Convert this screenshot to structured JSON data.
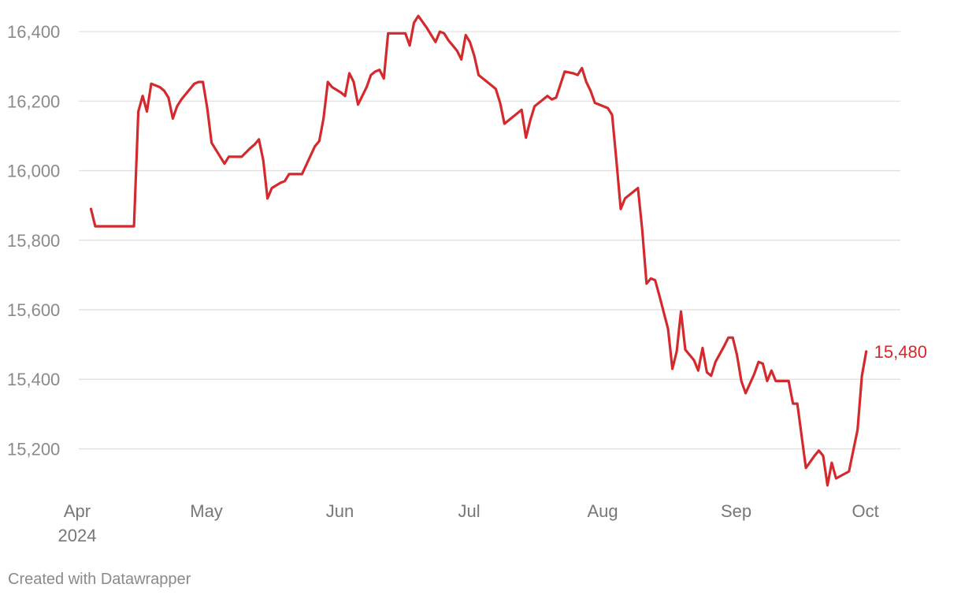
{
  "chart_data": {
    "type": "line",
    "colors": {
      "line": "#d42a2e",
      "grid": "#dedede",
      "tick_text": "#8a8a8a"
    },
    "y_ticks": [
      {
        "value": 15200,
        "label": "15,200"
      },
      {
        "value": 15400,
        "label": "15,400"
      },
      {
        "value": 15600,
        "label": "15,600"
      },
      {
        "value": 15800,
        "label": "15,800"
      },
      {
        "value": 16000,
        "label": "16,000"
      },
      {
        "value": 16200,
        "label": "16,200"
      },
      {
        "value": 16400,
        "label": "16,400"
      }
    ],
    "ylim": [
      15090,
      16450
    ],
    "grid": true,
    "x_ticks": [
      {
        "date": "2024-04-01",
        "label": "Apr",
        "sublabel": "2024"
      },
      {
        "date": "2024-05-01",
        "label": "May",
        "sublabel": ""
      },
      {
        "date": "2024-06-01",
        "label": "Jun",
        "sublabel": ""
      },
      {
        "date": "2024-07-01",
        "label": "Jul",
        "sublabel": ""
      },
      {
        "date": "2024-08-01",
        "label": "Aug",
        "sublabel": ""
      },
      {
        "date": "2024-09-01",
        "label": "Sep",
        "sublabel": ""
      },
      {
        "date": "2024-10-01",
        "label": "Oct",
        "sublabel": ""
      }
    ],
    "xlim": [
      "2024-04-01",
      "2024-10-04"
    ],
    "end_label": "15,480",
    "series": [
      {
        "points": [
          [
            "2024-04-02",
            15890
          ],
          [
            "2024-04-03",
            15840
          ],
          [
            "2024-04-05",
            15840
          ],
          [
            "2024-04-08",
            15840
          ],
          [
            "2024-04-10",
            15840
          ],
          [
            "2024-04-12",
            15840
          ],
          [
            "2024-04-13",
            16170
          ],
          [
            "2024-04-14",
            16215
          ],
          [
            "2024-04-15",
            16170
          ],
          [
            "2024-04-16",
            16250
          ],
          [
            "2024-04-18",
            16240
          ],
          [
            "2024-04-19",
            16230
          ],
          [
            "2024-04-20",
            16210
          ],
          [
            "2024-04-21",
            16150
          ],
          [
            "2024-04-22",
            16185
          ],
          [
            "2024-04-23",
            16205
          ],
          [
            "2024-04-25",
            16235
          ],
          [
            "2024-04-26",
            16250
          ],
          [
            "2024-04-27",
            16255
          ],
          [
            "2024-04-28",
            16255
          ],
          [
            "2024-04-29",
            16180
          ],
          [
            "2024-04-30",
            16080
          ],
          [
            "2024-05-03",
            16020
          ],
          [
            "2024-05-04",
            16040
          ],
          [
            "2024-05-06",
            16040
          ],
          [
            "2024-05-07",
            16040
          ],
          [
            "2024-05-09",
            16065
          ],
          [
            "2024-05-10",
            16075
          ],
          [
            "2024-05-11",
            16090
          ],
          [
            "2024-05-12",
            16030
          ],
          [
            "2024-05-13",
            15920
          ],
          [
            "2024-05-14",
            15950
          ],
          [
            "2024-05-16",
            15965
          ],
          [
            "2024-05-17",
            15970
          ],
          [
            "2024-05-18",
            15990
          ],
          [
            "2024-05-20",
            15990
          ],
          [
            "2024-05-21",
            15990
          ],
          [
            "2024-05-24",
            16070
          ],
          [
            "2024-05-25",
            16085
          ],
          [
            "2024-05-26",
            16150
          ],
          [
            "2024-05-27",
            16255
          ],
          [
            "2024-05-28",
            16240
          ],
          [
            "2024-05-30",
            16225
          ],
          [
            "2024-05-31",
            16215
          ],
          [
            "2024-06-01",
            16280
          ],
          [
            "2024-06-02",
            16255
          ],
          [
            "2024-06-03",
            16190
          ],
          [
            "2024-06-05",
            16240
          ],
          [
            "2024-06-06",
            16275
          ],
          [
            "2024-06-07",
            16285
          ],
          [
            "2024-06-08",
            16290
          ],
          [
            "2024-06-09",
            16265
          ],
          [
            "2024-06-10",
            16395
          ],
          [
            "2024-06-12",
            16395
          ],
          [
            "2024-06-14",
            16395
          ],
          [
            "2024-06-15",
            16360
          ],
          [
            "2024-06-16",
            16425
          ],
          [
            "2024-06-17",
            16445
          ],
          [
            "2024-06-19",
            16410
          ],
          [
            "2024-06-21",
            16370
          ],
          [
            "2024-06-22",
            16400
          ],
          [
            "2024-06-23",
            16395
          ],
          [
            "2024-06-24",
            16375
          ],
          [
            "2024-06-26",
            16345
          ],
          [
            "2024-06-27",
            16320
          ],
          [
            "2024-06-28",
            16390
          ],
          [
            "2024-06-29",
            16370
          ],
          [
            "2024-06-30",
            16330
          ],
          [
            "2024-07-01",
            16275
          ],
          [
            "2024-07-03",
            16255
          ],
          [
            "2024-07-04",
            16245
          ],
          [
            "2024-07-05",
            16235
          ],
          [
            "2024-07-06",
            16195
          ],
          [
            "2024-07-07",
            16135
          ],
          [
            "2024-07-09",
            16155
          ],
          [
            "2024-07-10",
            16165
          ],
          [
            "2024-07-11",
            16175
          ],
          [
            "2024-07-12",
            16095
          ],
          [
            "2024-07-13",
            16145
          ],
          [
            "2024-07-14",
            16185
          ],
          [
            "2024-07-16",
            16205
          ],
          [
            "2024-07-17",
            16215
          ],
          [
            "2024-07-18",
            16205
          ],
          [
            "2024-07-19",
            16210
          ],
          [
            "2024-07-21",
            16285
          ],
          [
            "2024-07-23",
            16280
          ],
          [
            "2024-07-24",
            16275
          ],
          [
            "2024-07-25",
            16295
          ],
          [
            "2024-07-26",
            16255
          ],
          [
            "2024-07-27",
            16230
          ],
          [
            "2024-07-28",
            16195
          ],
          [
            "2024-07-31",
            16180
          ],
          [
            "2024-08-01",
            16160
          ],
          [
            "2024-08-02",
            16030
          ],
          [
            "2024-08-03",
            15890
          ],
          [
            "2024-08-04",
            15920
          ],
          [
            "2024-08-06",
            15940
          ],
          [
            "2024-08-07",
            15950
          ],
          [
            "2024-08-08",
            15830
          ],
          [
            "2024-08-09",
            15675
          ],
          [
            "2024-08-10",
            15690
          ],
          [
            "2024-08-11",
            15685
          ],
          [
            "2024-08-12",
            15640
          ],
          [
            "2024-08-14",
            15545
          ],
          [
            "2024-08-15",
            15430
          ],
          [
            "2024-08-16",
            15480
          ],
          [
            "2024-08-17",
            15595
          ],
          [
            "2024-08-18",
            15485
          ],
          [
            "2024-08-20",
            15455
          ],
          [
            "2024-08-21",
            15425
          ],
          [
            "2024-08-22",
            15490
          ],
          [
            "2024-08-23",
            15420
          ],
          [
            "2024-08-24",
            15410
          ],
          [
            "2024-08-25",
            15450
          ],
          [
            "2024-08-27",
            15495
          ],
          [
            "2024-08-28",
            15520
          ],
          [
            "2024-08-29",
            15520
          ],
          [
            "2024-08-30",
            15470
          ],
          [
            "2024-08-31",
            15395
          ],
          [
            "2024-09-01",
            15360
          ],
          [
            "2024-09-03",
            15415
          ],
          [
            "2024-09-04",
            15450
          ],
          [
            "2024-09-05",
            15445
          ],
          [
            "2024-09-06",
            15395
          ],
          [
            "2024-09-07",
            15425
          ],
          [
            "2024-09-08",
            15395
          ],
          [
            "2024-09-09",
            15395
          ],
          [
            "2024-09-11",
            15395
          ],
          [
            "2024-09-12",
            15330
          ],
          [
            "2024-09-13",
            15330
          ],
          [
            "2024-09-15",
            15145
          ],
          [
            "2024-09-17",
            15180
          ],
          [
            "2024-09-18",
            15195
          ],
          [
            "2024-09-19",
            15180
          ],
          [
            "2024-09-20",
            15095
          ],
          [
            "2024-09-21",
            15160
          ],
          [
            "2024-09-22",
            15115
          ],
          [
            "2024-09-25",
            15135
          ],
          [
            "2024-09-27",
            15255
          ],
          [
            "2024-09-28",
            15410
          ],
          [
            "2024-09-29",
            15480
          ]
        ]
      }
    ]
  },
  "footer": {
    "credit": "Created with Datawrapper"
  }
}
